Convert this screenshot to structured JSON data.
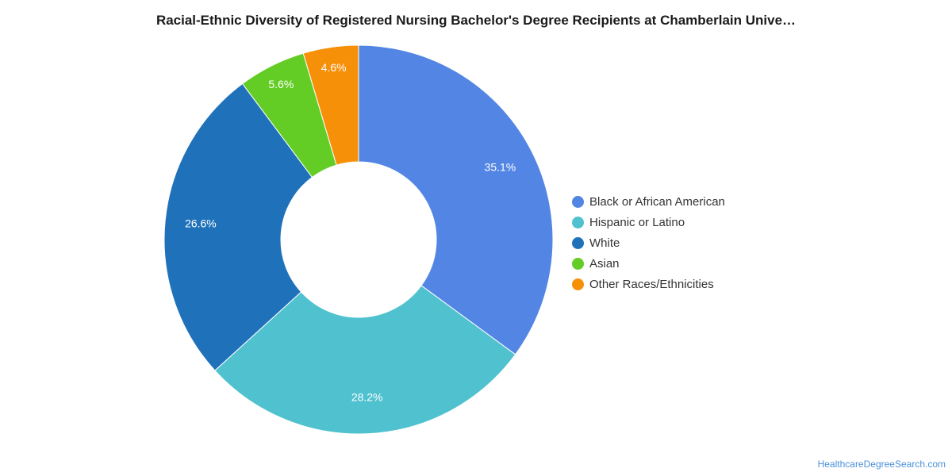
{
  "title": "Racial-Ethnic Diversity of Registered Nursing Bachelor's Degree Recipients at Chamberlain Unive…",
  "footer": "HealthcareDegreeSearch.com",
  "chart_data": {
    "type": "pie",
    "donut": true,
    "title": "Racial-Ethnic Diversity of Registered Nursing Bachelor's Degree Recipients at Chamberlain Unive…",
    "legend_position": "right",
    "slices": [
      {
        "label": "Black or African American",
        "value": 35.1,
        "display": "35.1%",
        "color": "#5386e4"
      },
      {
        "label": "Hispanic or Latino",
        "value": 28.2,
        "display": "28.2%",
        "color": "#4fc1cf"
      },
      {
        "label": "White",
        "value": 26.6,
        "display": "26.6%",
        "color": "#1f72ba"
      },
      {
        "label": "Asian",
        "value": 5.6,
        "display": "5.6%",
        "color": "#63cd25"
      },
      {
        "label": "Other Races/Ethnicities",
        "value": 4.6,
        "display": "4.6%",
        "color": "#f79009"
      }
    ]
  }
}
